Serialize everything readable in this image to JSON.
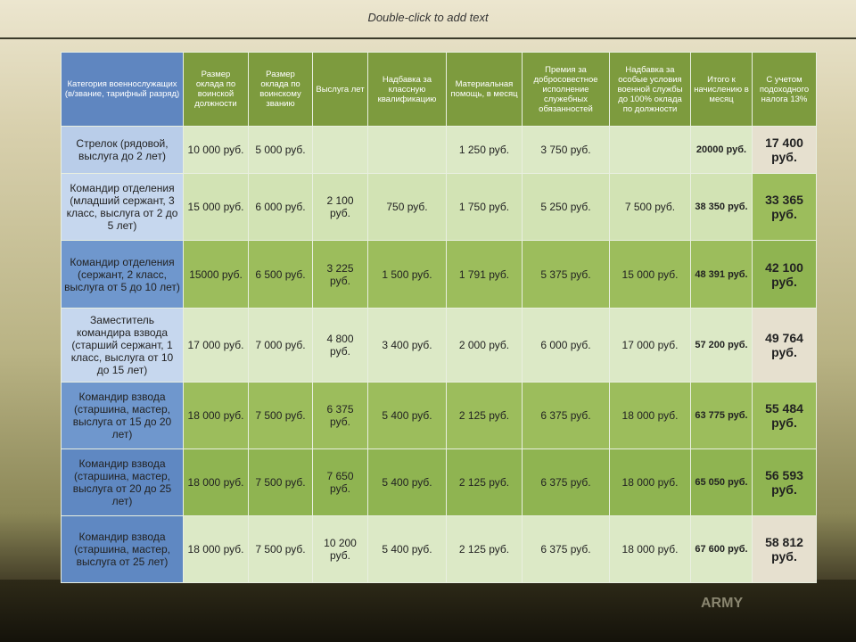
{
  "header": {
    "title": "Double-click to add text"
  },
  "table": {
    "headers": [
      "Категория военнослужащих (в/звание, тарифный разряд)",
      "Размер оклада по воинской должности",
      "Размер оклада по воинскому званию",
      "Выслуга лет",
      "Надбавка за классную квалификацию",
      "Материальная помощь, в месяц",
      "Премия за добросовестное исполнение служебных обязанностей",
      "Надбавка за особые условия военной службы до 100% оклада по должности",
      "Итого к начислению в месяц",
      "С учетом подоходного налога 13%"
    ],
    "rows": [
      [
        "Стрелок (рядовой, выслуга до 2 лет)",
        "10 000 руб.",
        "5 000 руб.",
        null,
        null,
        "1 250 руб.",
        "3 750 руб.",
        null,
        "20000 руб.",
        "17 400 руб."
      ],
      [
        "Командир отделения (младший сержант, 3 класс, выслуга от 2 до 5 лет)",
        "15 000 руб.",
        "6 000 руб.",
        "2 100 руб.",
        "750 руб.",
        "1 750 руб.",
        "5 250 руб.",
        "7 500 руб.",
        "38 350 руб.",
        "33 365 руб."
      ],
      [
        "Командир отделения (сержант, 2 класс, выслуга от 5 до 10 лет)",
        "15000 руб.",
        "6 500 руб.",
        "3 225 руб.",
        "1 500 руб.",
        "1 791 руб.",
        "5 375 руб.",
        "15 000 руб.",
        "48 391 руб.",
        "42 100 руб."
      ],
      [
        "Заместитель командира взвода (старший сержант, 1 класс, выслуга от 10 до 15 лет)",
        "17 000 руб.",
        "7 000 руб.",
        "4 800 руб.",
        "3 400 руб.",
        "2 000 руб.",
        "6 000 руб.",
        "17 000 руб.",
        "57 200 руб.",
        "49 764 руб."
      ],
      [
        "Командир взвода (старшина, мастер, выслуга от 15 до 20 лет)",
        "18 000 руб.",
        "7 500 руб.",
        "6 375 руб.",
        "5 400 руб.",
        "2 125 руб.",
        "6 375 руб.",
        "18 000 руб.",
        "63 775 руб.",
        "55 484 руб."
      ],
      [
        "Командир взвода (старшина, мастер, выслуга от 20 до 25 лет)",
        "18 000 руб.",
        "7 500 руб.",
        "7 650 руб.",
        "5 400 руб.",
        "2 125 руб.",
        "6 375 руб.",
        "18 000 руб.",
        "65 050 руб.",
        "56 593 руб."
      ],
      [
        "Командир взвода (старшина, мастер, выслуга от 25 лет)",
        "18 000 руб.",
        "7 500 руб.",
        "10 200 руб.",
        "5 400 руб.",
        "2 125 руб.",
        "6 375 руб.",
        "18 000 руб.",
        "67 600 руб.",
        "58 812 руб."
      ]
    ]
  },
  "background": {
    "label": "ARMY"
  }
}
